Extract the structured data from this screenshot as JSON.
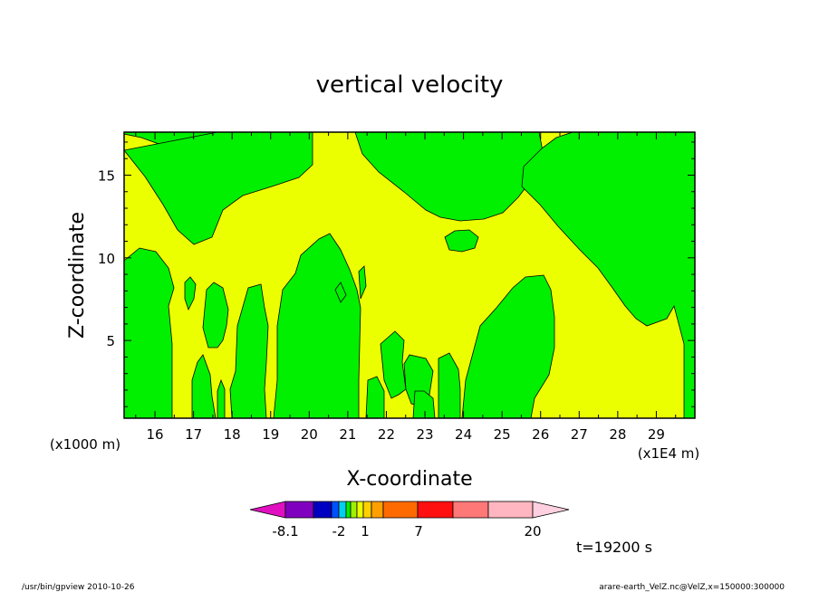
{
  "chart_data": {
    "type": "heatmap",
    "title": "vertical velocity",
    "xlabel": "X-coordinate",
    "ylabel": "Z-coordinate",
    "x_unit_left": "(x1000 m)",
    "x_unit_right": "(x1E4 m)",
    "xlim": [
      15.2,
      30.0
    ],
    "ylim": [
      0.3,
      17.6
    ],
    "x_ticks": [
      16,
      17,
      18,
      19,
      20,
      21,
      22,
      23,
      24,
      25,
      26,
      27,
      28,
      29
    ],
    "x_tick_labels": [
      "16",
      "17",
      "18",
      "19",
      "20",
      "21",
      "22",
      "23",
      "24",
      "25",
      "26",
      "27",
      "28",
      "29"
    ],
    "y_ticks": [
      5,
      10,
      15
    ],
    "y_tick_labels": [
      "5",
      "10",
      "15"
    ],
    "field_levels": {
      "background_color": "#ecff00",
      "region_color": "#00f000"
    },
    "colorbar": {
      "colors": [
        "#e010c0",
        "#8000c0",
        "#0000c0",
        "#0050ff",
        "#00d0f0",
        "#00f000",
        "#a0f000",
        "#ecff00",
        "#ffd000",
        "#ffa000",
        "#ff6a00",
        "#ff1010",
        "#ff7878",
        "#ffb6c0",
        "#ffd0e0"
      ],
      "labels": [
        "-8.1",
        "-2",
        "1",
        "7",
        "20"
      ]
    },
    "time_label": "t=19200 s"
  },
  "footer": {
    "left": "/usr/bin/gpview   2010-10-26",
    "right": "arare-earth_VelZ.nc@VelZ,x=150000:300000"
  }
}
